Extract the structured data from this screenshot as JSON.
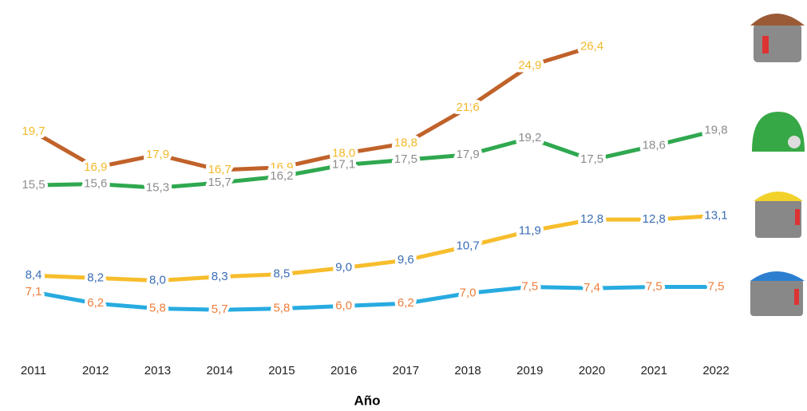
{
  "chart_data": {
    "type": "line",
    "x_label": "Año",
    "categories": [
      "2011",
      "2012",
      "2013",
      "2014",
      "2015",
      "2016",
      "2017",
      "2018",
      "2019",
      "2020",
      "2021",
      "2022"
    ],
    "ylim": [
      0,
      28
    ],
    "series": [
      {
        "color": "#c0622a",
        "label_color": "#f2b92a",
        "values": [
          19.7,
          16.9,
          17.9,
          16.7,
          16.9,
          18.0,
          18.8,
          21.6,
          24.9,
          26.4,
          null,
          null
        ],
        "value_labels": [
          "19,7",
          "16,9",
          "17,9",
          "16,7",
          "16,9",
          "18,0",
          "18,8",
          "21,6",
          "24,9",
          "26,4",
          null,
          null
        ]
      },
      {
        "color": "#2fa84f",
        "label_color": "#8c8c8c",
        "values": [
          15.5,
          15.6,
          15.3,
          15.7,
          16.2,
          17.1,
          17.5,
          17.9,
          19.2,
          17.5,
          18.6,
          19.8
        ],
        "value_labels": [
          "15,5",
          "15,6",
          "15,3",
          "15,7",
          "16,2",
          "17,1",
          "17,5",
          "17,9",
          "19,2",
          "17,5",
          "18,6",
          "19,8"
        ]
      },
      {
        "color": "#f7bd2c",
        "label_color": "#3a6db3",
        "values": [
          8.4,
          8.2,
          8.0,
          8.3,
          8.5,
          9.0,
          9.6,
          10.7,
          11.9,
          12.8,
          12.8,
          13.1
        ],
        "value_labels": [
          "8,4",
          "8,2",
          "8,0",
          "8,3",
          "8,5",
          "9,0",
          "9,6",
          "10,7",
          "11,9",
          "12,8",
          "12,8",
          "13,1"
        ]
      },
      {
        "color": "#27abe0",
        "label_color": "#ec7c3a",
        "values": [
          7.1,
          6.2,
          5.8,
          5.7,
          5.8,
          6.0,
          6.2,
          7.0,
          7.5,
          7.4,
          7.5,
          7.5
        ],
        "value_labels": [
          "7,1",
          "6,2",
          "5,8",
          "5,7",
          "5,8",
          "6,0",
          "6,2",
          "7,0",
          "7,5",
          "7,4",
          "7,5",
          "7,5"
        ]
      }
    ]
  }
}
